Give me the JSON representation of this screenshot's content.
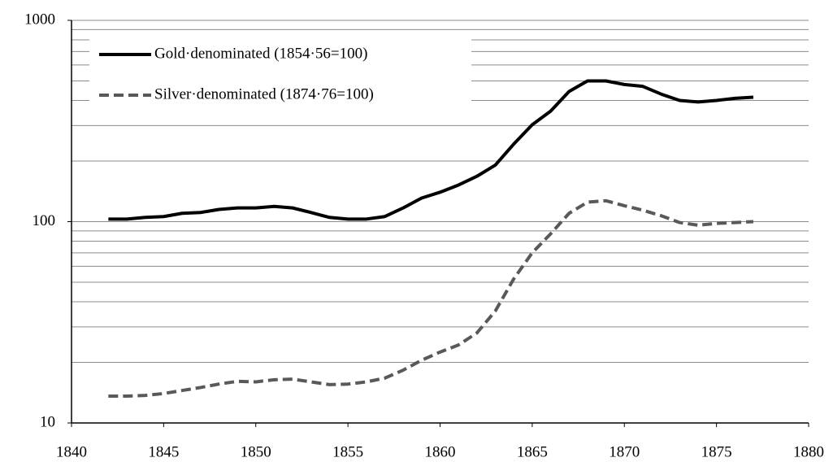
{
  "chart_data": {
    "type": "line",
    "log_y": true,
    "grid": true,
    "x": [
      1842,
      1843,
      1844,
      1845,
      1846,
      1847,
      1848,
      1849,
      1850,
      1851,
      1852,
      1853,
      1854,
      1855,
      1856,
      1857,
      1858,
      1859,
      1860,
      1861,
      1862,
      1863,
      1864,
      1865,
      1866,
      1867,
      1868,
      1869,
      1870,
      1871,
      1872,
      1873,
      1874,
      1875,
      1876,
      1877
    ],
    "series": [
      {
        "name": "Gold·denominated (1854·56=100)",
        "color": "#000000",
        "dash": false,
        "values": [
          103,
          103,
          105,
          106,
          110,
          111,
          115,
          117,
          117,
          119,
          117,
          111,
          105,
          103,
          103,
          106,
          117,
          131,
          140,
          152,
          168,
          191,
          243,
          303,
          354,
          443,
          500,
          500,
          480,
          470,
          430,
          400,
          393,
          400,
          410,
          415
        ]
      },
      {
        "name": "Silver·denominated (1874·76=100)",
        "color": "#595959",
        "dash": true,
        "values": [
          13.6,
          13.6,
          13.7,
          14.0,
          14.5,
          15.0,
          15.6,
          16.1,
          16.0,
          16.4,
          16.5,
          16.0,
          15.5,
          15.6,
          16.0,
          16.7,
          18.3,
          20.5,
          22.5,
          24.4,
          28,
          36,
          52,
          70,
          87,
          110,
          125,
          127,
          120,
          114,
          107,
          99,
          96,
          98,
          99,
          100
        ]
      }
    ],
    "xlim": [
      1840,
      1880
    ],
    "xticks": [
      1840,
      1845,
      1850,
      1855,
      1860,
      1865,
      1870,
      1875,
      1880
    ],
    "ylim": [
      10,
      1000
    ],
    "yticks": [
      10,
      100,
      1000
    ],
    "yminor": [
      20,
      30,
      40,
      50,
      60,
      70,
      80,
      90,
      200,
      300,
      400,
      500,
      600,
      700,
      800,
      900
    ]
  }
}
